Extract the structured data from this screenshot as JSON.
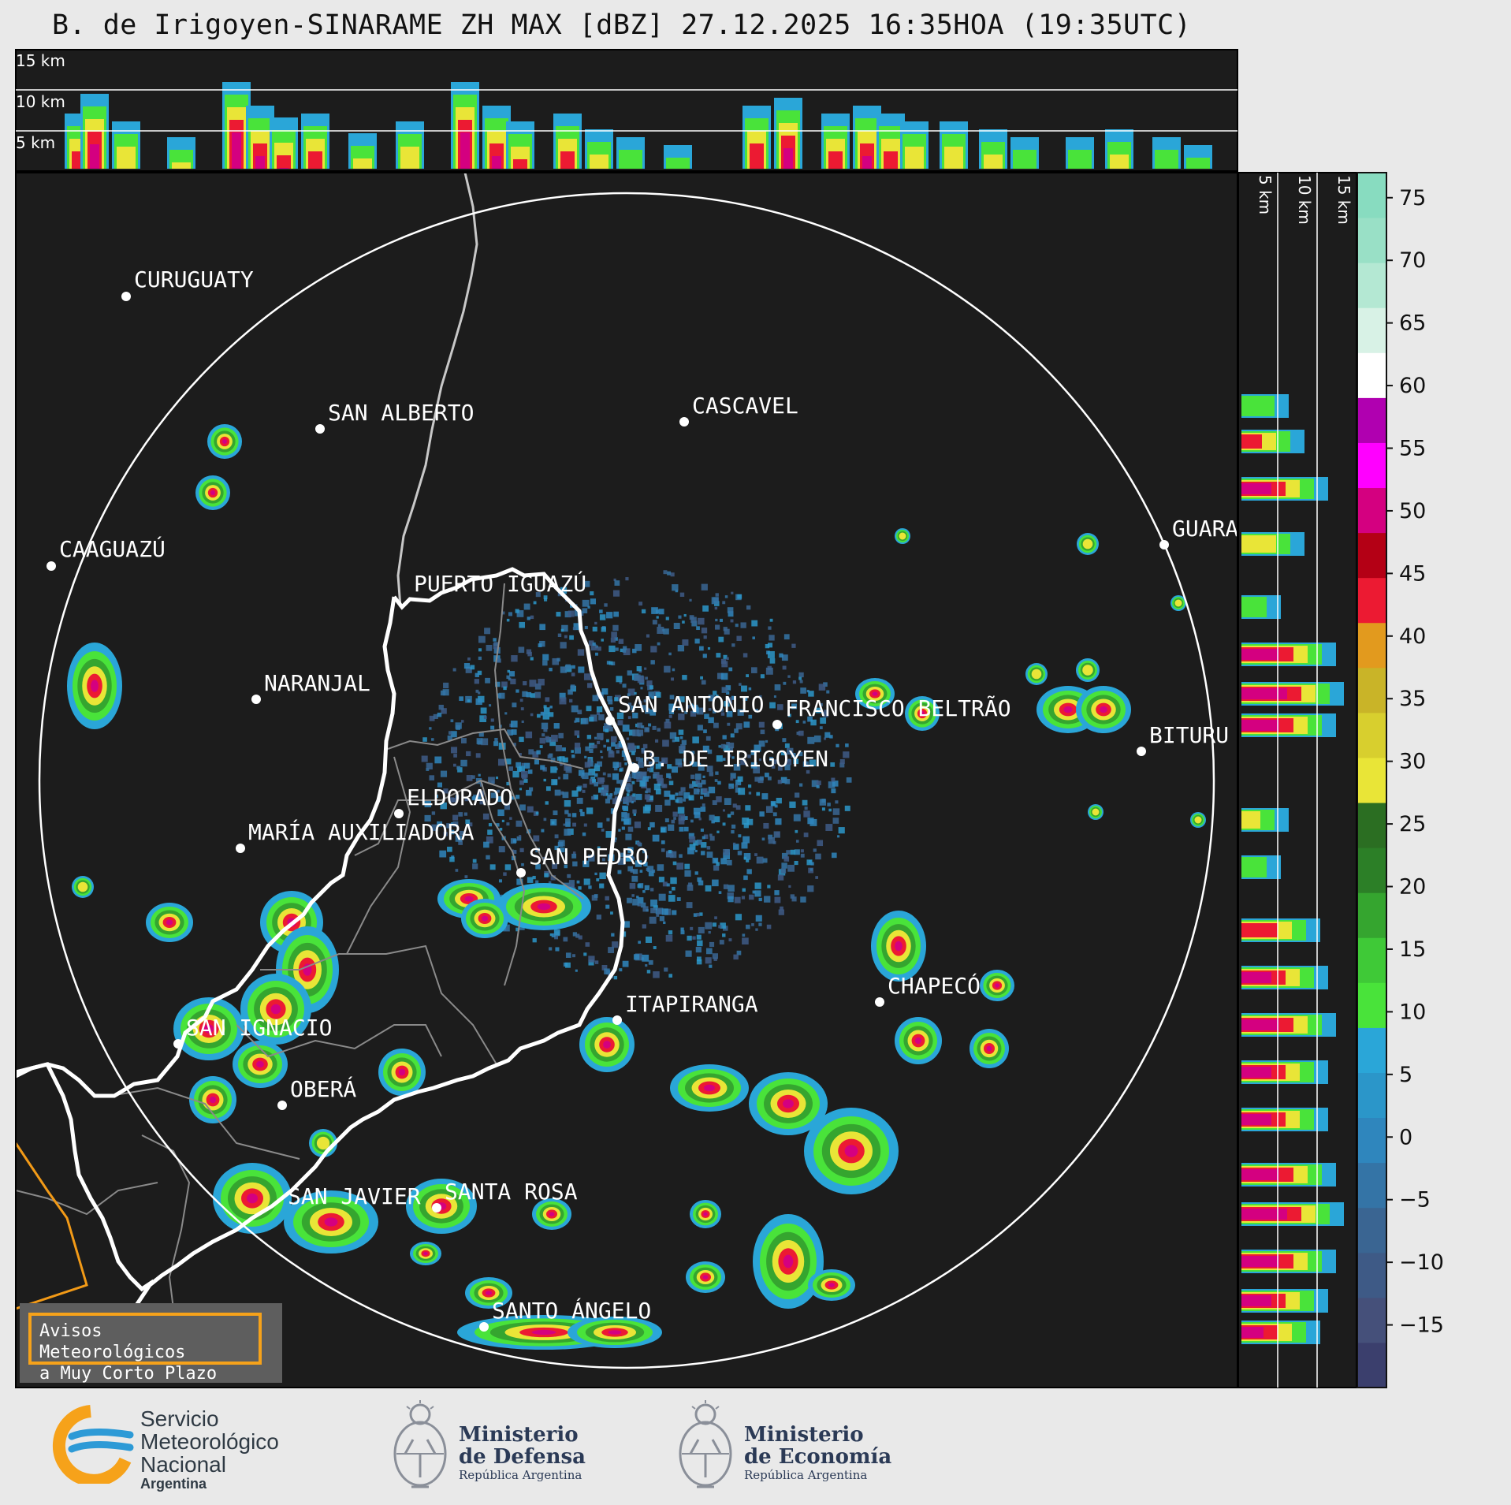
{
  "title": "B. de Irigoyen-SINARAME ZH MAX [dBZ] 27.12.2025 16:35HOA (19:35UTC)",
  "top_panel": {
    "height_labels": [
      "15 km",
      "10 km",
      "5 km"
    ]
  },
  "side_panel": {
    "height_labels": [
      "5 km",
      "10 km",
      "15 km"
    ]
  },
  "colorbar": {
    "ticks": [
      "75",
      "70",
      "65",
      "60",
      "55",
      "50",
      "45",
      "40",
      "35",
      "30",
      "25",
      "20",
      "15",
      "10",
      "5",
      "0",
      "−5",
      "−10",
      "−15"
    ],
    "tick_values": [
      75,
      70,
      65,
      60,
      55,
      50,
      45,
      40,
      35,
      30,
      25,
      20,
      15,
      10,
      5,
      0,
      -5,
      -10,
      -15
    ],
    "range": [
      -20,
      77
    ],
    "colors": [
      "#3b3f6d",
      "#45507a",
      "#3e5a86",
      "#3a6592",
      "#3474a6",
      "#2f86bd",
      "#2b96c9",
      "#2aa6d8",
      "#49e33a",
      "#3fc937",
      "#35a52f",
      "#2c7f27",
      "#2b6e22",
      "#e9e537",
      "#d8cf2e",
      "#c9b428",
      "#e29a1e",
      "#ec1a32",
      "#b40015",
      "#d40080",
      "#ff00ff",
      "#b000b0",
      "#ffffff",
      "#d8f2e6",
      "#b4e8d3",
      "#99e0c6",
      "#88dcc0"
    ]
  },
  "cities": [
    {
      "name": "CURUGUATY"
    },
    {
      "name": "SAN ALBERTO"
    },
    {
      "name": "CASCAVEL"
    },
    {
      "name": "CAAGUAZÚ"
    },
    {
      "name": "GUARA"
    },
    {
      "name": "PUERTO IGUAZÚ"
    },
    {
      "name": "NARANJAL"
    },
    {
      "name": "SAN ANTONIO"
    },
    {
      "name": "FRANCISCO BELTRÃO"
    },
    {
      "name": "BITURU"
    },
    {
      "name": "B. DE IRIGOYEN"
    },
    {
      "name": "ELDORADO"
    },
    {
      "name": "MARÍA AUXILIADORA"
    },
    {
      "name": "SAN PEDRO"
    },
    {
      "name": "CHAPECÓ"
    },
    {
      "name": "ITAPIRANGA"
    },
    {
      "name": "SAN IGNACIO"
    },
    {
      "name": "OBERÁ"
    },
    {
      "name": "SAN JAVIER"
    },
    {
      "name": "SANTA ROSA"
    },
    {
      "name": "SANTO ÁNGELO"
    }
  ],
  "warning_box": {
    "text": "Avisos Meteorológicos\na Muy Corto Plazo",
    "border_color": "#f6a21a"
  },
  "logos": {
    "smn": {
      "line1": "Servicio",
      "line2": "Meteorológico",
      "line3": "Nacional",
      "line4": "Argentina"
    },
    "defensa": {
      "line1": "Ministerio",
      "line2": "de Defensa",
      "line3": "República Argentina"
    },
    "economia": {
      "line1": "Ministerio",
      "line2": "de Economía",
      "line3": "República Argentina"
    }
  },
  "colors": {
    "map_background": "#1c1c1c",
    "page_background": "#e9e9e9",
    "range_ring": "#ffffff"
  }
}
